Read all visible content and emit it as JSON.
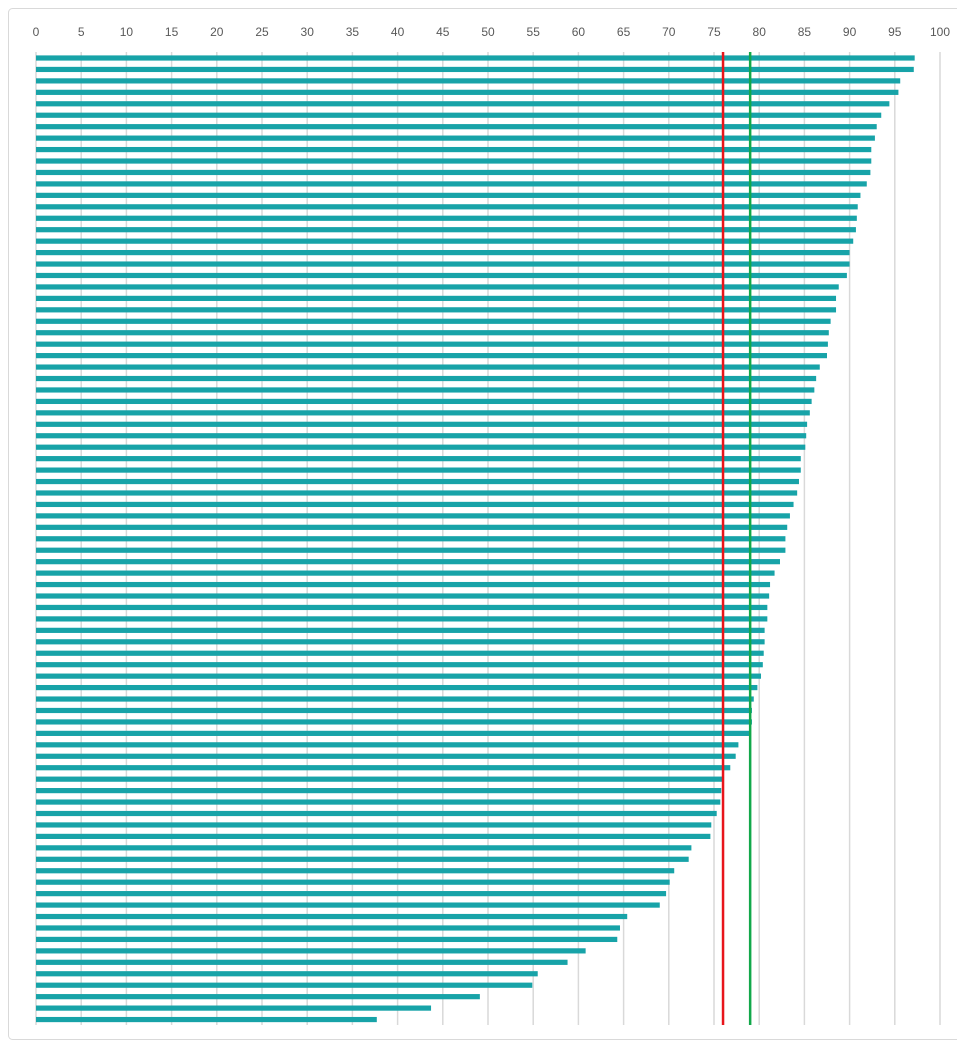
{
  "chart_data": {
    "type": "hbar",
    "categories": [
      null,
      null,
      null,
      null,
      null,
      null,
      null,
      null,
      null,
      null,
      null,
      null,
      null,
      null,
      null,
      null,
      null,
      null,
      null,
      null,
      null,
      null,
      null,
      null,
      null,
      null,
      null,
      null,
      null,
      null,
      null,
      null,
      null,
      null,
      null,
      null,
      null,
      null,
      null,
      null,
      null,
      null,
      null,
      null,
      null,
      null,
      null,
      null,
      null,
      null,
      null,
      null,
      null,
      null,
      null,
      null,
      null,
      null,
      null,
      null,
      null,
      null,
      null,
      null,
      null,
      null,
      null,
      null,
      null,
      null,
      null,
      null,
      null,
      null,
      null,
      null,
      null,
      null,
      null,
      null,
      null,
      null,
      null,
      null,
      null
    ],
    "values": [
      97.2,
      97.1,
      95.6,
      95.4,
      94.4,
      93.5,
      93.0,
      92.8,
      92.4,
      92.4,
      92.3,
      91.9,
      91.2,
      90.9,
      90.8,
      90.7,
      90.4,
      90.0,
      90.0,
      89.7,
      88.8,
      88.5,
      88.5,
      87.9,
      87.7,
      87.6,
      87.5,
      86.7,
      86.3,
      86.1,
      85.8,
      85.6,
      85.3,
      85.2,
      85.1,
      84.6,
      84.6,
      84.4,
      84.2,
      83.8,
      83.4,
      83.1,
      82.9,
      82.9,
      82.3,
      81.7,
      81.2,
      81.1,
      80.9,
      80.9,
      80.6,
      80.6,
      80.5,
      80.4,
      80.2,
      79.8,
      79.4,
      79.2,
      79.2,
      79.0,
      77.7,
      77.4,
      76.8,
      76.0,
      75.8,
      75.7,
      75.3,
      74.7,
      74.6,
      72.5,
      72.2,
      70.6,
      70.1,
      69.7,
      69.0,
      65.4,
      64.6,
      64.3,
      60.8,
      58.8,
      55.5,
      54.9,
      49.1,
      43.7,
      37.7
    ],
    "color": "#17a3a8",
    "xlim": [
      0,
      100
    ],
    "xticks": [
      0,
      5,
      10,
      15,
      20,
      25,
      30,
      35,
      40,
      45,
      50,
      55,
      60,
      65,
      70,
      75,
      80,
      85,
      90,
      95,
      100
    ],
    "grid": true,
    "reference_lines": [
      {
        "value": 76.0,
        "color": "#e8151b"
      },
      {
        "value": 79.0,
        "color": "#12a84a"
      }
    ]
  }
}
